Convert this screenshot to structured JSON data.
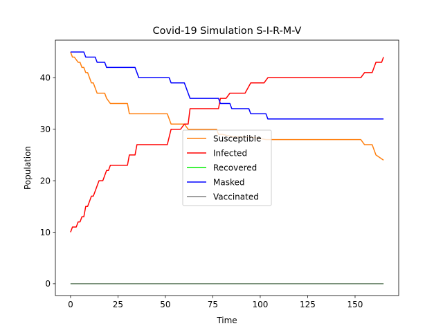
{
  "chart_data": {
    "type": "line",
    "title": "Covid-19 Simulation S-I-R-M-V",
    "xlabel": "Time",
    "ylabel": "Population",
    "xlim": [
      -8,
      173
    ],
    "ylim": [
      -2.3,
      47.3
    ],
    "xticks": [
      0,
      25,
      50,
      75,
      100,
      125,
      150
    ],
    "yticks": [
      0,
      10,
      20,
      30,
      40
    ],
    "grid": false,
    "legend_position": "center",
    "series": [
      {
        "name": "Susceptible",
        "color": "#ff7f0e",
        "x": [
          0,
          1,
          2,
          4,
          5,
          6,
          7,
          8,
          9,
          10,
          11,
          12,
          14,
          18,
          19,
          21,
          30,
          31,
          51,
          53,
          60,
          62,
          77,
          78,
          80,
          86,
          95,
          103,
          153,
          155,
          159,
          161,
          165
        ],
        "y": [
          45,
          44,
          44,
          43,
          43,
          42,
          42,
          41,
          41,
          40,
          39,
          39,
          37,
          37,
          36,
          35,
          35,
          33,
          33,
          31,
          31,
          30,
          30,
          29,
          29,
          28.5,
          28.5,
          28,
          28,
          27,
          27,
          25,
          24
        ]
      },
      {
        "name": "Infected",
        "color": "#ff0000",
        "x": [
          0,
          1,
          3,
          4,
          5,
          6,
          7,
          8,
          9,
          10,
          11,
          12,
          13,
          14,
          15,
          17,
          18,
          19,
          20,
          21,
          23,
          30,
          31,
          34,
          35,
          51,
          53,
          58,
          60,
          62,
          63,
          78,
          79,
          82,
          84,
          92,
          95,
          102,
          104,
          153,
          155,
          159,
          161,
          164,
          165
        ],
        "y": [
          10,
          11,
          11,
          12,
          12,
          13,
          13,
          15,
          15,
          16,
          17,
          17,
          18,
          19,
          20,
          20,
          21,
          22,
          22,
          23,
          23,
          23,
          25,
          25,
          27,
          27,
          30,
          30,
          31,
          31,
          34,
          34,
          36,
          36,
          37,
          37,
          39,
          39,
          40,
          40,
          41,
          41,
          43,
          43,
          44
        ]
      },
      {
        "name": "Recovered",
        "color": "#00ee00",
        "x": [
          0,
          165
        ],
        "y": [
          0,
          0
        ]
      },
      {
        "name": "Masked",
        "color": "#0000ff",
        "x": [
          0,
          7,
          8,
          13,
          14,
          18,
          19,
          34,
          36,
          52,
          53,
          60,
          61,
          62,
          63,
          78,
          79,
          84,
          85,
          94,
          95,
          103,
          104,
          165
        ],
        "y": [
          45,
          45,
          44,
          44,
          43,
          43,
          42,
          42,
          40,
          40,
          39,
          39,
          38,
          37,
          36,
          36,
          35,
          35,
          34,
          34,
          33,
          33,
          32,
          32
        ]
      },
      {
        "name": "Vaccinated",
        "color": "#808080",
        "x": [
          0,
          165
        ],
        "y": [
          0,
          0
        ]
      }
    ]
  }
}
